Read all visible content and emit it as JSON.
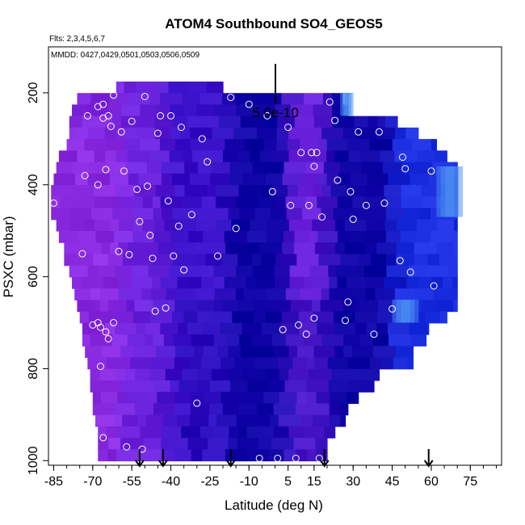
{
  "chart_data": {
    "type": "heatmap",
    "title": "ATOM4 Southbound SO4_GEOS5",
    "flights_note": "Flts: 2,3,4,5,6,7",
    "dates_note": "MMDD: 0427,0429,0501,0503,0506,0509",
    "xlabel": "Latitude (deg N)",
    "ylabel": "PSXC (mbar)",
    "xlim": [
      -87,
      87
    ],
    "ylim": [
      1010,
      100
    ],
    "x_ticks": [
      -85,
      -70,
      -55,
      -40,
      -25,
      -10,
      5,
      15,
      30,
      45,
      60,
      75
    ],
    "x_tick_labels": [
      "-85",
      "-70",
      "-55",
      "-40",
      "-25",
      "-10",
      "5",
      "15",
      "30",
      "45",
      "60",
      "75"
    ],
    "x_minor_step": 5,
    "y_ticks": [
      200,
      400,
      600,
      800,
      1000
    ],
    "y_tick_labels": [
      "200",
      "400",
      "600",
      "800",
      "1000"
    ],
    "scale_label": "5.0e-10",
    "colors": {
      "violet": "#8a2be2",
      "purple": "#6a22dc",
      "indigo": "#3a10c8",
      "navy": "#0f04a6",
      "blue": "#1a2ee0",
      "light_blue": "#4a8cf2"
    },
    "pressure_bands": [
      {
        "p": 188,
        "x0": -61,
        "x1": -20,
        "dom": 0.5
      },
      {
        "p": 213,
        "x0": -76,
        "x1": 26,
        "dom": 0.55
      },
      {
        "p": 238,
        "x0": -78,
        "x1": 28,
        "dom": 0.6
      },
      {
        "p": 263,
        "x0": -79,
        "x1": 47,
        "dom": 0.65
      },
      {
        "p": 288,
        "x0": -79,
        "x1": 55,
        "dom": 0.68
      },
      {
        "p": 313,
        "x0": -80,
        "x1": 62,
        "dom": 0.7
      },
      {
        "p": 338,
        "x0": -83,
        "x1": 66,
        "dom": 0.72
      },
      {
        "p": 363,
        "x0": -84,
        "x1": 70,
        "dom": 0.74
      },
      {
        "p": 388,
        "x0": -85,
        "x1": 70,
        "dom": 0.76
      },
      {
        "p": 413,
        "x0": -86,
        "x1": 70,
        "dom": 0.78
      },
      {
        "p": 438,
        "x0": -86,
        "x1": 70,
        "dom": 0.8
      },
      {
        "p": 463,
        "x0": -86,
        "x1": 70,
        "dom": 0.8
      },
      {
        "p": 488,
        "x0": -84,
        "x1": 70,
        "dom": 0.8
      },
      {
        "p": 513,
        "x0": -83,
        "x1": 70,
        "dom": 0.8
      },
      {
        "p": 538,
        "x0": -81,
        "x1": 70,
        "dom": 0.82
      },
      {
        "p": 563,
        "x0": -81,
        "x1": 70,
        "dom": 0.82
      },
      {
        "p": 588,
        "x0": -79,
        "x1": 70,
        "dom": 0.84
      },
      {
        "p": 613,
        "x0": -78,
        "x1": 70,
        "dom": 0.84
      },
      {
        "p": 638,
        "x0": -77,
        "x1": 70,
        "dom": 0.86
      },
      {
        "p": 663,
        "x0": -76,
        "x1": 70,
        "dom": 0.86
      },
      {
        "p": 688,
        "x0": -75,
        "x1": 66,
        "dom": 0.86
      },
      {
        "p": 713,
        "x0": -74,
        "x1": 59,
        "dom": 0.86
      },
      {
        "p": 738,
        "x0": -74,
        "x1": 58,
        "dom": 0.86
      },
      {
        "p": 763,
        "x0": -73,
        "x1": 53,
        "dom": 0.88
      },
      {
        "p": 788,
        "x0": -72,
        "x1": 53,
        "dom": 0.88
      },
      {
        "p": 813,
        "x0": -71,
        "x1": 40,
        "dom": 0.88
      },
      {
        "p": 838,
        "x0": -71,
        "x1": 38,
        "dom": 0.9
      },
      {
        "p": 863,
        "x0": -70,
        "x1": 32,
        "dom": 0.9
      },
      {
        "p": 888,
        "x0": -70,
        "x1": 28,
        "dom": 0.9
      },
      {
        "p": 913,
        "x0": -69,
        "x1": 27,
        "dom": 0.92
      },
      {
        "p": 938,
        "x0": -68,
        "x1": 23,
        "dom": 0.92
      },
      {
        "p": 963,
        "x0": -68,
        "x1": 20,
        "dom": 0.92
      },
      {
        "p": 988,
        "x0": -68,
        "x1": 20,
        "dom": 0.92
      }
    ],
    "field_zones": [
      {
        "x0": -87,
        "x1": -58,
        "color": "violet"
      },
      {
        "x0": -58,
        "x1": -42,
        "color": "purple"
      },
      {
        "x0": -42,
        "x1": -18,
        "color": "indigo"
      },
      {
        "x0": -18,
        "x1": 5,
        "color": "navy"
      },
      {
        "x0": 5,
        "x1": 20,
        "color": "purple"
      },
      {
        "x0": 20,
        "x1": 45,
        "color": "navy"
      },
      {
        "x0": 45,
        "x1": 72,
        "color": "blue"
      }
    ],
    "highlights": [
      {
        "lat_range": [
          25,
          30
        ],
        "p_range": [
          200,
          250
        ],
        "color": "light_blue"
      },
      {
        "lat_range": [
          62,
          72
        ],
        "p_range": [
          360,
          470
        ],
        "color": "light_blue"
      },
      {
        "lat_range": [
          45,
          55
        ],
        "p_range": [
          650,
          700
        ],
        "color": "light_blue"
      }
    ],
    "samples": [
      [
        -85,
        440
      ],
      [
        -80,
        240
      ],
      [
        -74,
        550
      ],
      [
        -73,
        380
      ],
      [
        -72,
        250
      ],
      [
        -70,
        705
      ],
      [
        -70,
        960
      ],
      [
        -68,
        700
      ],
      [
        -68,
        230
      ],
      [
        -68,
        400
      ],
      [
        -67,
        710
      ],
      [
        -67,
        795
      ],
      [
        -66,
        950
      ],
      [
        -66,
        225
      ],
      [
        -66,
        255
      ],
      [
        -65,
        720
      ],
      [
        -65,
        367
      ],
      [
        -64,
        735
      ],
      [
        -64,
        250
      ],
      [
        -63,
        273
      ],
      [
        -62,
        205
      ],
      [
        -62,
        700
      ],
      [
        -60,
        545
      ],
      [
        -59,
        285
      ],
      [
        -58,
        370
      ],
      [
        -57,
        970
      ],
      [
        -56,
        552
      ],
      [
        -55,
        262
      ],
      [
        -53,
        410
      ],
      [
        -52,
        480
      ],
      [
        -51,
        975
      ],
      [
        -50,
        208
      ],
      [
        -49,
        403
      ],
      [
        -48,
        510
      ],
      [
        -47,
        560
      ],
      [
        -46,
        675
      ],
      [
        -45,
        288
      ],
      [
        -44,
        250
      ],
      [
        -42,
        668
      ],
      [
        -41,
        435
      ],
      [
        -40,
        250
      ],
      [
        -39,
        555
      ],
      [
        -37,
        490
      ],
      [
        -36,
        275
      ],
      [
        -35,
        585
      ],
      [
        -32,
        465
      ],
      [
        -30,
        875
      ],
      [
        -28,
        300
      ],
      [
        -26,
        350
      ],
      [
        -22,
        555
      ],
      [
        -17,
        210
      ],
      [
        -15,
        495
      ],
      [
        -10,
        225
      ],
      [
        -6,
        995
      ],
      [
        -3,
        250
      ],
      [
        -1,
        415
      ],
      [
        1,
        995
      ],
      [
        3,
        715
      ],
      [
        5,
        275
      ],
      [
        6,
        445
      ],
      [
        8,
        995
      ],
      [
        9,
        705
      ],
      [
        10,
        330
      ],
      [
        12,
        725
      ],
      [
        13,
        445
      ],
      [
        14,
        330
      ],
      [
        15,
        690
      ],
      [
        15,
        360
      ],
      [
        16,
        330
      ],
      [
        17,
        995
      ],
      [
        18,
        470
      ],
      [
        21,
        220
      ],
      [
        23,
        260
      ],
      [
        24,
        390
      ],
      [
        27,
        695
      ],
      [
        28,
        655
      ],
      [
        29,
        415
      ],
      [
        30,
        475
      ],
      [
        32,
        285
      ],
      [
        35,
        445
      ],
      [
        38,
        725
      ],
      [
        40,
        285
      ],
      [
        42,
        440
      ],
      [
        45,
        670
      ],
      [
        48,
        565
      ],
      [
        49,
        340
      ],
      [
        50,
        365
      ],
      [
        52,
        590
      ],
      [
        60,
        370
      ],
      [
        61,
        620
      ]
    ],
    "arrows": [
      -52,
      -43,
      -17,
      19,
      59
    ],
    "scale_bar_magnitude": 5e-10
  }
}
